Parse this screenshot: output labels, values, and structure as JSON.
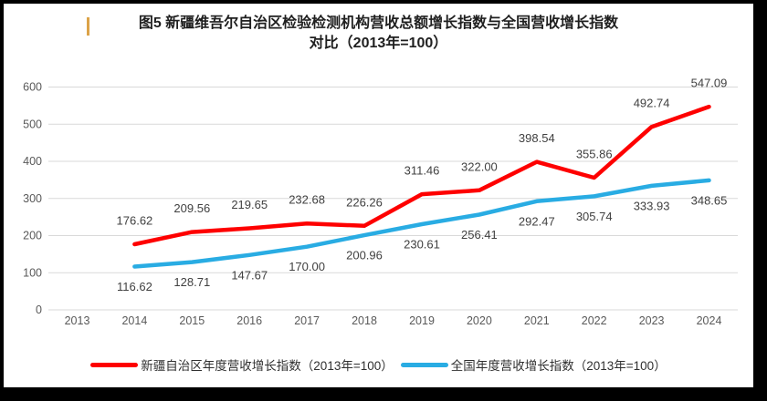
{
  "title": {
    "line1": "图5  新疆维吾尔自治区检验检测机构营收总额增长指数与全国营收增长指数",
    "line2": "对比（2013年=100）"
  },
  "chart_data": {
    "type": "line",
    "title": "图5 新疆维吾尔自治区检验检测机构营收总额增长指数与全国营收增长指数对比（2013年=100）",
    "categories": [
      "2013",
      "2014",
      "2015",
      "2016",
      "2017",
      "2018",
      "2019",
      "2020",
      "2021",
      "2022",
      "2023",
      "2024"
    ],
    "series": [
      {
        "name": "新疆自治区年度营收增长指数（2013年=100）",
        "color": "#FE0000",
        "label_position": "above",
        "values": [
          null,
          176.62,
          209.56,
          219.65,
          232.68,
          226.26,
          311.46,
          322.0,
          398.54,
          355.86,
          492.74,
          547.09
        ]
      },
      {
        "name": "全国年度营收增长指数（2013年=100）",
        "color": "#29ACE3",
        "label_position": "below",
        "values": [
          null,
          116.62,
          128.71,
          147.67,
          170.0,
          200.96,
          230.61,
          256.41,
          292.47,
          305.74,
          333.93,
          348.65
        ]
      }
    ],
    "ylim": [
      0,
      600
    ],
    "yticks": [
      0,
      100,
      200,
      300,
      400,
      500,
      600
    ],
    "grid": "horizontal",
    "legend_position": "bottom"
  },
  "styles": {
    "grid_color": "#D9D9D9",
    "tick_color": "#595959",
    "data_label_color": "#404040",
    "title_color": "#1F1F1F",
    "caret_color": "#DCA348",
    "panel_bg": "#FFFFFF",
    "frame_bg": "#000000"
  }
}
